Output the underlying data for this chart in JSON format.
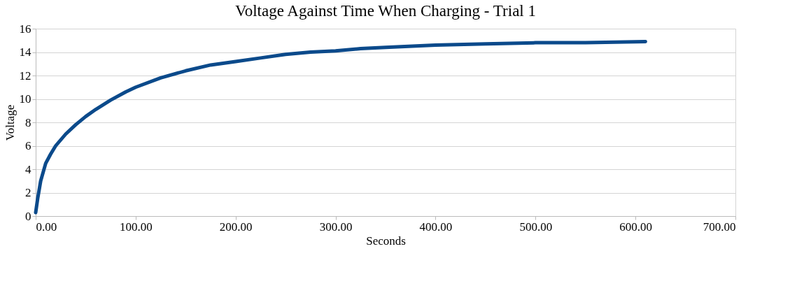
{
  "chart_data": {
    "type": "line",
    "title": "Voltage  Against  Time  When  Charging  - Trial  1",
    "xlabel": "Seconds",
    "ylabel": "Voltage",
    "x": [
      0,
      2,
      5,
      10,
      15,
      20,
      30,
      40,
      50,
      60,
      75,
      90,
      100,
      125,
      150,
      175,
      200,
      225,
      250,
      275,
      300,
      325,
      350,
      400,
      450,
      500,
      550,
      610
    ],
    "series": [
      {
        "color": "#0b4a8b",
        "values": [
          0.3,
          1.5,
          3,
          4.5,
          5.3,
          6,
          7,
          7.8,
          8.5,
          9.1,
          9.9,
          10.6,
          11,
          11.8,
          12.4,
          12.9,
          13.2,
          13.5,
          13.8,
          14,
          14.1,
          14.3,
          14.4,
          14.6,
          14.7,
          14.8,
          14.8,
          14.9
        ]
      }
    ],
    "xlim": [
      0,
      700
    ],
    "xticks": [
      {
        "value": 0,
        "label": "0.00"
      },
      {
        "value": 100,
        "label": "100.00"
      },
      {
        "value": 200,
        "label": "200.00"
      },
      {
        "value": 300,
        "label": "300.00"
      },
      {
        "value": 400,
        "label": "400.00"
      },
      {
        "value": 500,
        "label": "500.00"
      },
      {
        "value": 600,
        "label": "600.00"
      },
      {
        "value": 700,
        "label": "700.00"
      }
    ],
    "ylim": [
      0,
      16
    ],
    "yticks": [
      0,
      2,
      4,
      6,
      8,
      10,
      12,
      14,
      16
    ],
    "grid": "y",
    "marker": "none",
    "line_style": "solid",
    "legend": false
  }
}
